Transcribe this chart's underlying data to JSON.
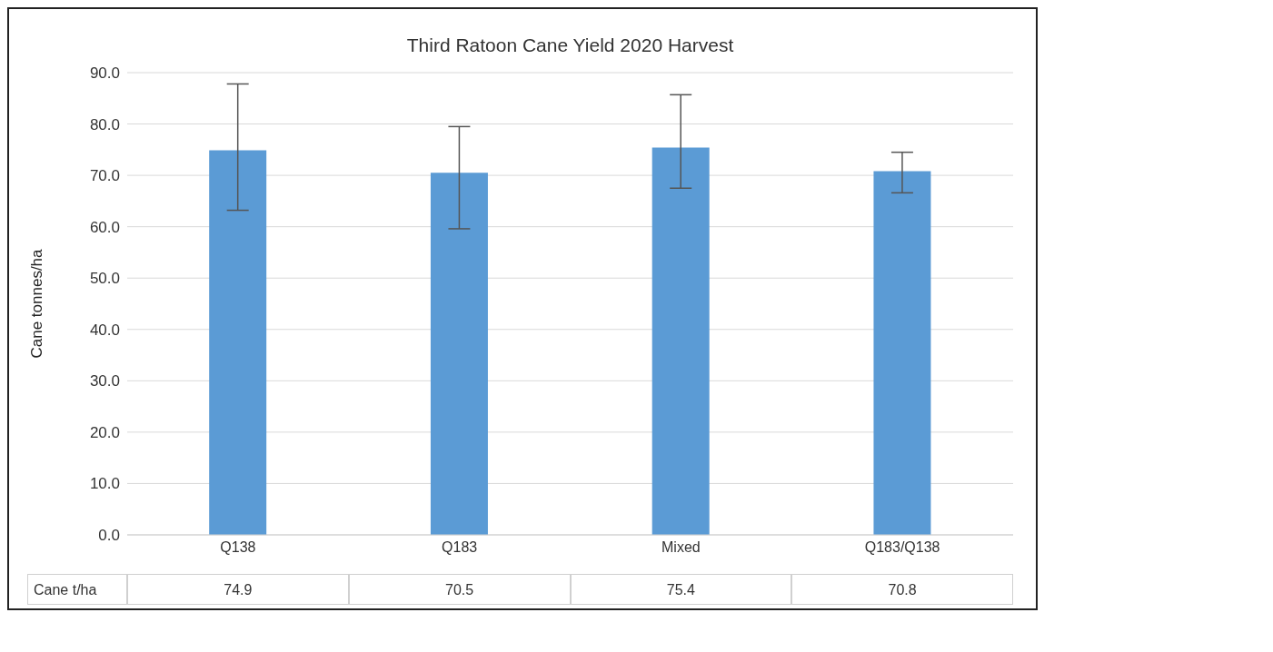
{
  "chart_data": {
    "type": "bar",
    "title": "Third Ratoon Cane Yield 2020 Harvest",
    "ylabel": "Cane tonnes/ha",
    "categories": [
      "Q138",
      "Q183",
      "Mixed",
      "Q183/Q138"
    ],
    "series": [
      {
        "name": "Cane t/ha",
        "color": "#5b9bd5",
        "values": [
          74.9,
          70.5,
          75.4,
          70.8
        ],
        "errors": [
          [
            63.2,
            87.8
          ],
          [
            59.6,
            79.5
          ],
          [
            67.5,
            85.7
          ],
          [
            66.6,
            74.5
          ]
        ]
      }
    ],
    "ylim": [
      0,
      90
    ],
    "yticks": [
      {
        "value": 0,
        "label": "0.0"
      },
      {
        "value": 10,
        "label": "10.0"
      },
      {
        "value": 20,
        "label": "20.0"
      },
      {
        "value": 30,
        "label": "30.0"
      },
      {
        "value": 40,
        "label": "40.0"
      },
      {
        "value": 50,
        "label": "50.0"
      },
      {
        "value": 60,
        "label": "60.0"
      },
      {
        "value": 70,
        "label": "70.0"
      },
      {
        "value": 80,
        "label": "80.0"
      },
      {
        "value": 90,
        "label": "90.0"
      }
    ],
    "grid": "y",
    "data_labels": true
  }
}
